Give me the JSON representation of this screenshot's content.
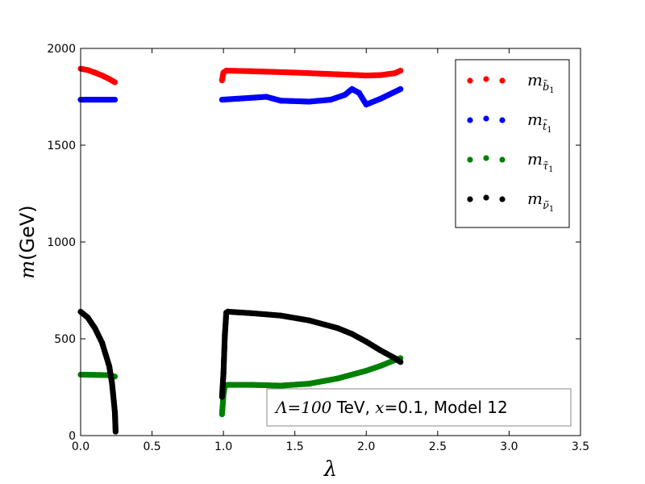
{
  "chart_data": {
    "type": "scatter",
    "title": "",
    "xlabel": "λ",
    "ylabel_math": "m",
    "ylabel_unit": "(GeV)",
    "xlim": [
      0,
      3.5
    ],
    "ylim": [
      0,
      2000
    ],
    "x_ticks": [
      "0.0",
      "0.5",
      "1.0",
      "1.5",
      "2.0",
      "2.5",
      "3.0",
      "3.5"
    ],
    "y_ticks": [
      "0",
      "500",
      "1000",
      "1500",
      "2000"
    ],
    "grid": false,
    "legend_position": "top-right",
    "annotation": {
      "lambda_sym": "Λ",
      "equals": "=",
      "lambda_value": "100",
      "lambda_unit": " TeV, ",
      "x_sym": "x",
      "x_rest": "=0.1, Model 12"
    },
    "series": [
      {
        "legend_base": "m",
        "legend_sub": "b̃",
        "legend_subsub": "1",
        "color": "#ff0000",
        "segments": [
          [
            [
              0.0,
              1895
            ],
            [
              0.05,
              1888
            ],
            [
              0.1,
              1875
            ],
            [
              0.15,
              1860
            ],
            [
              0.2,
              1842
            ],
            [
              0.24,
              1825
            ]
          ],
          [
            [
              0.99,
              1835
            ],
            [
              1.0,
              1875
            ],
            [
              1.02,
              1885
            ],
            [
              1.2,
              1882
            ],
            [
              1.5,
              1875
            ],
            [
              1.8,
              1866
            ],
            [
              2.0,
              1860
            ],
            [
              2.1,
              1862
            ],
            [
              2.2,
              1872
            ],
            [
              2.24,
              1885
            ]
          ]
        ]
      },
      {
        "legend_base": "m",
        "legend_sub": "t̃",
        "legend_subsub": "1",
        "color": "#0000ff",
        "segments": [
          [
            [
              0.0,
              1735
            ],
            [
              0.24,
              1735
            ]
          ],
          [
            [
              0.99,
              1735
            ],
            [
              1.2,
              1745
            ],
            [
              1.3,
              1750
            ],
            [
              1.4,
              1730
            ],
            [
              1.6,
              1725
            ],
            [
              1.75,
              1735
            ],
            [
              1.85,
              1760
            ],
            [
              1.9,
              1790
            ],
            [
              1.95,
              1770
            ],
            [
              2.0,
              1710
            ],
            [
              2.1,
              1740
            ],
            [
              2.24,
              1790
            ]
          ]
        ]
      },
      {
        "legend_base": "m",
        "legend_sub": "τ̃",
        "legend_subsub": "1",
        "color": "#008000",
        "segments": [
          [
            [
              0.0,
              315
            ],
            [
              0.2,
              312
            ],
            [
              0.24,
              305
            ]
          ],
          [
            [
              0.99,
              110
            ],
            [
              1.0,
              210
            ],
            [
              1.01,
              258
            ],
            [
              1.03,
              262
            ],
            [
              1.2,
              262
            ],
            [
              1.4,
              258
            ],
            [
              1.6,
              268
            ],
            [
              1.8,
              295
            ],
            [
              2.0,
              335
            ],
            [
              2.1,
              360
            ],
            [
              2.2,
              390
            ],
            [
              2.24,
              400
            ]
          ]
        ]
      },
      {
        "legend_base": "m",
        "legend_sub": "ν̃",
        "legend_subsub": "1",
        "color": "#000000",
        "segments": [
          [
            [
              0.0,
              640
            ],
            [
              0.05,
              610
            ],
            [
              0.1,
              555
            ],
            [
              0.15,
              480
            ],
            [
              0.2,
              360
            ],
            [
              0.22,
              270
            ],
            [
              0.24,
              120
            ],
            [
              0.245,
              20
            ]
          ],
          [
            [
              0.99,
              200
            ],
            [
              1.0,
              320
            ],
            [
              1.01,
              520
            ],
            [
              1.02,
              635
            ],
            [
              1.03,
              640
            ],
            [
              1.2,
              632
            ],
            [
              1.4,
              620
            ],
            [
              1.6,
              595
            ],
            [
              1.8,
              555
            ],
            [
              1.9,
              525
            ],
            [
              2.0,
              485
            ],
            [
              2.1,
              440
            ],
            [
              2.2,
              400
            ],
            [
              2.24,
              380
            ]
          ]
        ]
      }
    ]
  }
}
